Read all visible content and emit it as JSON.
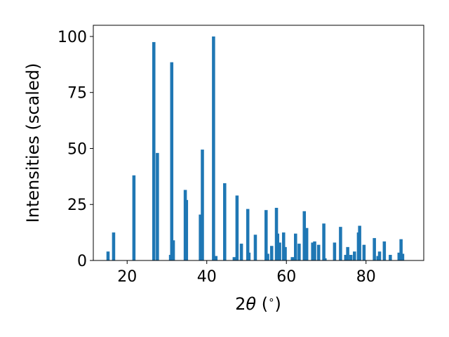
{
  "chart_data": {
    "type": "bar",
    "title": "",
    "xlabel_parts": [
      "2",
      "θ",
      " (",
      "∘",
      ")"
    ],
    "ylabel": "Intensities (scaled)",
    "xlim": [
      11.5,
      94.5
    ],
    "ylim": [
      0,
      105
    ],
    "xticks": [
      20,
      40,
      60,
      80
    ],
    "yticks": [
      0,
      25,
      50,
      75,
      100
    ],
    "grid": false,
    "legend": "none",
    "bar_width": 0.8,
    "color": "#1f77b4",
    "x": [
      15.2,
      16.6,
      21.7,
      26.7,
      27.6,
      30.9,
      31.2,
      31.6,
      34.6,
      34.9,
      38.4,
      38.9,
      41.7,
      42.3,
      44.5,
      46.9,
      47.6,
      48.7,
      50.3,
      50.6,
      52.2,
      54.9,
      55.3,
      56.3,
      57.5,
      57.8,
      58.3,
      59.3,
      59.7,
      61.5,
      62.3,
      63.2,
      64.5,
      65.1,
      66.6,
      67.1,
      68.1,
      69.4,
      69.7,
      72.1,
      73.6,
      74.9,
      75.4,
      76.2,
      77.1,
      78.1,
      78.4,
      79.5,
      82.1,
      83.0,
      83.4,
      84.6,
      86.1,
      88.3,
      88.8,
      89.2
    ],
    "y": [
      4,
      12.5,
      38,
      97.5,
      48,
      2.5,
      88.5,
      9,
      31.5,
      27,
      20.5,
      49.5,
      100,
      2,
      34.5,
      1.5,
      29,
      7.5,
      23,
      3.5,
      11.5,
      22.5,
      3,
      6.5,
      23.5,
      12,
      8,
      12.5,
      6,
      1.5,
      12,
      7.5,
      22,
      14.5,
      8,
      8.5,
      7,
      16.5,
      1,
      8,
      15,
      2.5,
      6,
      2.5,
      4,
      12.5,
      15.5,
      7,
      10,
      2,
      4,
      8.5,
      2.5,
      3.5,
      9.5,
      3
    ]
  }
}
